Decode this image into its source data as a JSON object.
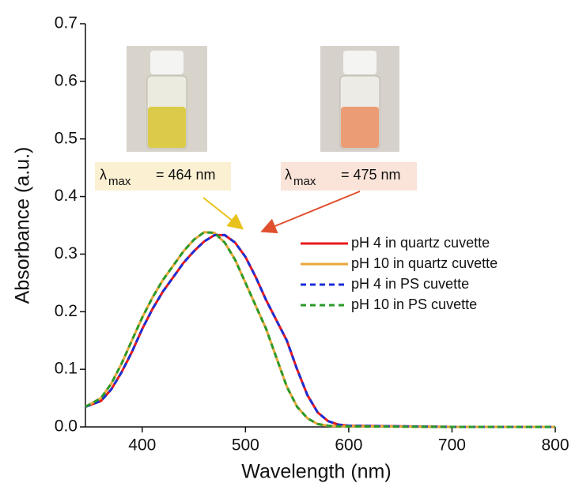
{
  "chart_data": {
    "type": "line",
    "xlabel": "Wavelength (nm)",
    "ylabel": "Absorbance (a.u.)",
    "x": [
      345,
      360,
      370,
      380,
      390,
      400,
      410,
      420,
      430,
      440,
      450,
      460,
      470,
      480,
      490,
      500,
      510,
      520,
      530,
      540,
      550,
      560,
      570,
      580,
      590,
      600,
      700,
      800
    ],
    "series": [
      {
        "name": "pH 4 in quartz cuvette",
        "color": "#e8191c",
        "linestyle": "solid",
        "values": [
          0.035,
          0.045,
          0.065,
          0.095,
          0.13,
          0.17,
          0.205,
          0.235,
          0.26,
          0.285,
          0.305,
          0.322,
          0.333,
          0.333,
          0.32,
          0.295,
          0.26,
          0.22,
          0.185,
          0.15,
          0.1,
          0.055,
          0.025,
          0.01,
          0.004,
          0.002,
          0,
          0
        ]
      },
      {
        "name": "pH 10 in quartz cuvette",
        "color": "#e8a73a",
        "linestyle": "solid",
        "values": [
          0.035,
          0.05,
          0.075,
          0.11,
          0.15,
          0.19,
          0.225,
          0.255,
          0.28,
          0.305,
          0.325,
          0.338,
          0.337,
          0.32,
          0.29,
          0.25,
          0.21,
          0.17,
          0.12,
          0.07,
          0.035,
          0.015,
          0.005,
          0.002,
          0.001,
          0.001,
          0,
          0
        ]
      },
      {
        "name": "pH 4 in PS cuvette",
        "color": "#1b2fd6",
        "linestyle": "dashed",
        "values": [
          0.035,
          0.045,
          0.065,
          0.095,
          0.13,
          0.17,
          0.205,
          0.235,
          0.26,
          0.285,
          0.305,
          0.322,
          0.333,
          0.333,
          0.32,
          0.295,
          0.26,
          0.22,
          0.185,
          0.15,
          0.1,
          0.055,
          0.025,
          0.01,
          0.004,
          0.002,
          0,
          0
        ]
      },
      {
        "name": "pH 10 in PS cuvette",
        "color": "#2a9a2a",
        "linestyle": "dashed",
        "values": [
          0.035,
          0.05,
          0.075,
          0.11,
          0.15,
          0.19,
          0.225,
          0.255,
          0.28,
          0.305,
          0.325,
          0.338,
          0.337,
          0.32,
          0.29,
          0.25,
          0.21,
          0.17,
          0.12,
          0.07,
          0.035,
          0.015,
          0.005,
          0.002,
          0.001,
          0.001,
          0,
          0
        ]
      }
    ],
    "xlim": [
      345,
      800
    ],
    "xticks": [
      400,
      500,
      600,
      700,
      800
    ],
    "ylim": [
      0,
      0.7
    ],
    "yticks": [
      {
        "value": 0,
        "label": "0.0"
      },
      0.1,
      0.2,
      0.3,
      0.4,
      0.5,
      0.6,
      0.7
    ],
    "annotations": [
      {
        "symbol": "λ",
        "subscript": "max",
        "text": "= 464 nm"
      },
      {
        "symbol": "λ",
        "subscript": "max",
        "text": "= 475 nm"
      }
    ]
  }
}
